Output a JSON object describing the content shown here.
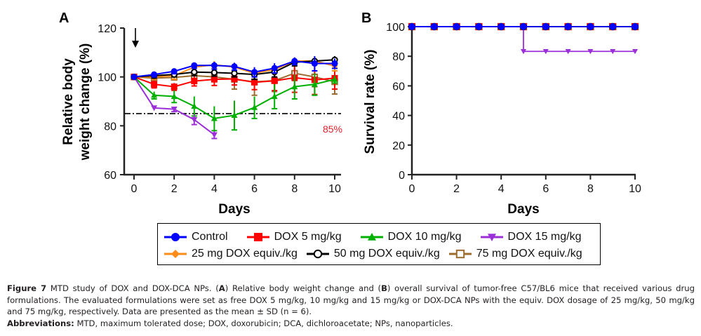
{
  "chart_data": [
    {
      "panel": "A",
      "type": "line",
      "title": "",
      "xlabel": "Days",
      "ylabel": "Relative body weight change (%)",
      "ylabel_lines": [
        "Relative body",
        "weight change (%)"
      ],
      "xlim": [
        0,
        10
      ],
      "ylim": [
        60,
        120
      ],
      "xticks": [
        0,
        2,
        4,
        6,
        8,
        10
      ],
      "yticks": [
        60,
        80,
        100,
        120
      ],
      "grid": false,
      "annotations": {
        "threshold_value": 85,
        "threshold_label": "85%",
        "arrow_day": 0,
        "arrow_meaning": "dosing"
      },
      "x": [
        0,
        1,
        2,
        3,
        4,
        5,
        6,
        7,
        8,
        9,
        10
      ],
      "series": [
        {
          "name": "Control",
          "color": "#0000ff",
          "marker": "circle",
          "values": [
            100,
            101,
            102.3,
            104.7,
            104.7,
            104.3,
            102,
            103.6,
            106.5,
            105.5,
            105.5
          ],
          "sd": [
            0.5,
            1.0,
            1.0,
            1.2,
            1.5,
            1.5,
            2.0,
            2.0,
            1.5,
            3.0,
            2.0
          ]
        },
        {
          "name": "DOX 5 mg/kg",
          "color": "#ff0000",
          "marker": "square",
          "values": [
            100,
            97,
            96,
            98.3,
            99,
            99.2,
            97.8,
            98.4,
            99.7,
            98.8,
            99.5
          ],
          "sd": [
            0.5,
            1.5,
            1.5,
            2.0,
            2.5,
            2.5,
            3.0,
            4.0,
            6.0,
            6.0,
            4.5
          ]
        },
        {
          "name": "DOX 10 mg/kg",
          "color": "#00b000",
          "marker": "triangle-up",
          "values": [
            100,
            92.5,
            92,
            88,
            83,
            84.3,
            87.5,
            92,
            96,
            97,
            99
          ],
          "sd": [
            0.5,
            1.5,
            2.5,
            4.0,
            5.0,
            6.0,
            4.5,
            5.0,
            5.0,
            4.5,
            1.5
          ]
        },
        {
          "name": "DOX 15 mg/kg",
          "color": "#9b30d9",
          "marker": "triangle-down",
          "values": [
            100,
            87.3,
            86.8,
            82.5,
            76.3
          ],
          "sd": [
            0.5,
            0.5,
            1.0,
            2.0,
            1.5
          ]
        },
        {
          "name": "25 mg DOX equiv./kg",
          "color": "#ff8c1a",
          "marker": "diamond",
          "values": [
            100,
            100,
            100.5,
            104,
            105,
            104,
            101.5,
            103,
            106.5,
            106.5,
            104.5
          ],
          "sd": [
            0.5,
            1.0,
            1.5,
            1.5,
            1.5,
            1.5,
            1.5,
            1.5,
            1.5,
            1.5,
            2.0
          ]
        },
        {
          "name": "50 mg DOX equiv./kg",
          "color": "#000000",
          "marker": "open-circle",
          "values": [
            100,
            100.5,
            101,
            102,
            101.8,
            101.5,
            101,
            102,
            106,
            106.5,
            107
          ],
          "sd": [
            0.5,
            1.0,
            1.0,
            1.5,
            1.5,
            1.5,
            2.0,
            2.0,
            1.5,
            1.5,
            1.5
          ]
        },
        {
          "name": "75 mg DOX equiv./kg",
          "color": "#9c6b2e",
          "marker": "open-square",
          "values": [
            100,
            99.5,
            99.8,
            100.5,
            100,
            99,
            98,
            98.5,
            101.5,
            100,
            98
          ],
          "sd": [
            0.5,
            1.0,
            1.0,
            1.0,
            1.0,
            4.0,
            5.5,
            4.5,
            3.0,
            4.0,
            5.0
          ]
        }
      ]
    },
    {
      "panel": "B",
      "type": "line",
      "title": "",
      "xlabel": "Days",
      "ylabel": "Survival rate (%)",
      "xlim": [
        0,
        10
      ],
      "ylim": [
        0,
        100
      ],
      "xticks": [
        0,
        2,
        4,
        6,
        8,
        10
      ],
      "yticks": [
        0,
        20,
        40,
        60,
        80,
        100
      ],
      "grid": false,
      "step": true,
      "x": [
        0,
        1,
        2,
        3,
        4,
        5,
        6,
        7,
        8,
        9,
        10
      ],
      "series": [
        {
          "name": "Control",
          "color": "#0000ff",
          "marker": "circle",
          "values": [
            100,
            100,
            100,
            100,
            100,
            100,
            100,
            100,
            100,
            100,
            100
          ]
        },
        {
          "name": "DOX 5 mg/kg",
          "color": "#ff0000",
          "marker": "square",
          "values": [
            100,
            100,
            100,
            100,
            100,
            100,
            100,
            100,
            100,
            100,
            100
          ]
        },
        {
          "name": "DOX 10 mg/kg",
          "color": "#00b000",
          "marker": "triangle-up",
          "values": [
            100,
            100,
            100,
            100,
            100,
            100,
            100,
            100,
            100,
            100,
            100
          ]
        },
        {
          "name": "DOX 15 mg/kg",
          "color": "#9b30d9",
          "marker": "triangle-down",
          "values": [
            100,
            100,
            100,
            100,
            100,
            83.3,
            83.3,
            83.3,
            83.3,
            83.3,
            83.3
          ]
        },
        {
          "name": "25 mg DOX equiv./kg",
          "color": "#ff8c1a",
          "marker": "diamond",
          "values": [
            100,
            100,
            100,
            100,
            100,
            100,
            100,
            100,
            100,
            100,
            100
          ]
        },
        {
          "name": "50 mg DOX equiv./kg",
          "color": "#000000",
          "marker": "open-circle",
          "values": [
            100,
            100,
            100,
            100,
            100,
            100,
            100,
            100,
            100,
            100,
            100
          ]
        },
        {
          "name": "75 mg DOX equiv./kg",
          "color": "#9c6b2e",
          "marker": "open-square",
          "values": [
            100,
            100,
            100,
            100,
            100,
            100,
            100,
            100,
            100,
            100,
            100
          ]
        }
      ]
    }
  ],
  "legend": {
    "placement": "bottom-center",
    "items": [
      {
        "label": "Control",
        "color": "#0000ff",
        "marker": "circle"
      },
      {
        "label": "DOX 5 mg/kg",
        "color": "#ff0000",
        "marker": "square"
      },
      {
        "label": "DOX 10 mg/kg",
        "color": "#00b000",
        "marker": "triangle-up"
      },
      {
        "label": "DOX 15 mg/kg",
        "color": "#9b30d9",
        "marker": "triangle-down"
      },
      {
        "label": "25 mg DOX equiv./kg",
        "color": "#ff8c1a",
        "marker": "diamond"
      },
      {
        "label": "50 mg DOX equiv./kg",
        "color": "#000000",
        "marker": "open-circle"
      },
      {
        "label": "75 mg DOX equiv./kg",
        "color": "#9c6b2e",
        "marker": "open-square"
      }
    ]
  },
  "caption": {
    "figure_label": "Figure 7",
    "text_1": " MTD study of DOX and DOX-DCA NPs. (",
    "panel_a": "A",
    "text_2": ") Relative body weight change and (",
    "panel_b": "B",
    "text_3": ") overall survival of tumor-free C57/BL6 mice that received various drug formulations. The evaluated formulations were set as free DOX 5 mg/kg, 10 mg/kg and 15 mg/kg or DOX-DCA NPs with the equiv. DOX dosage of 25 mg/kg, 50 mg/kg and 75 mg/kg, respectively. Data are presented as the mean ± SD (n = 6).",
    "abbrev_label": "Abbreviations:",
    "abbrev_text": " MTD, maximum tolerated dose; DOX, doxorubicin; DCA, dichloroacetate; NPs, nanoparticles."
  }
}
